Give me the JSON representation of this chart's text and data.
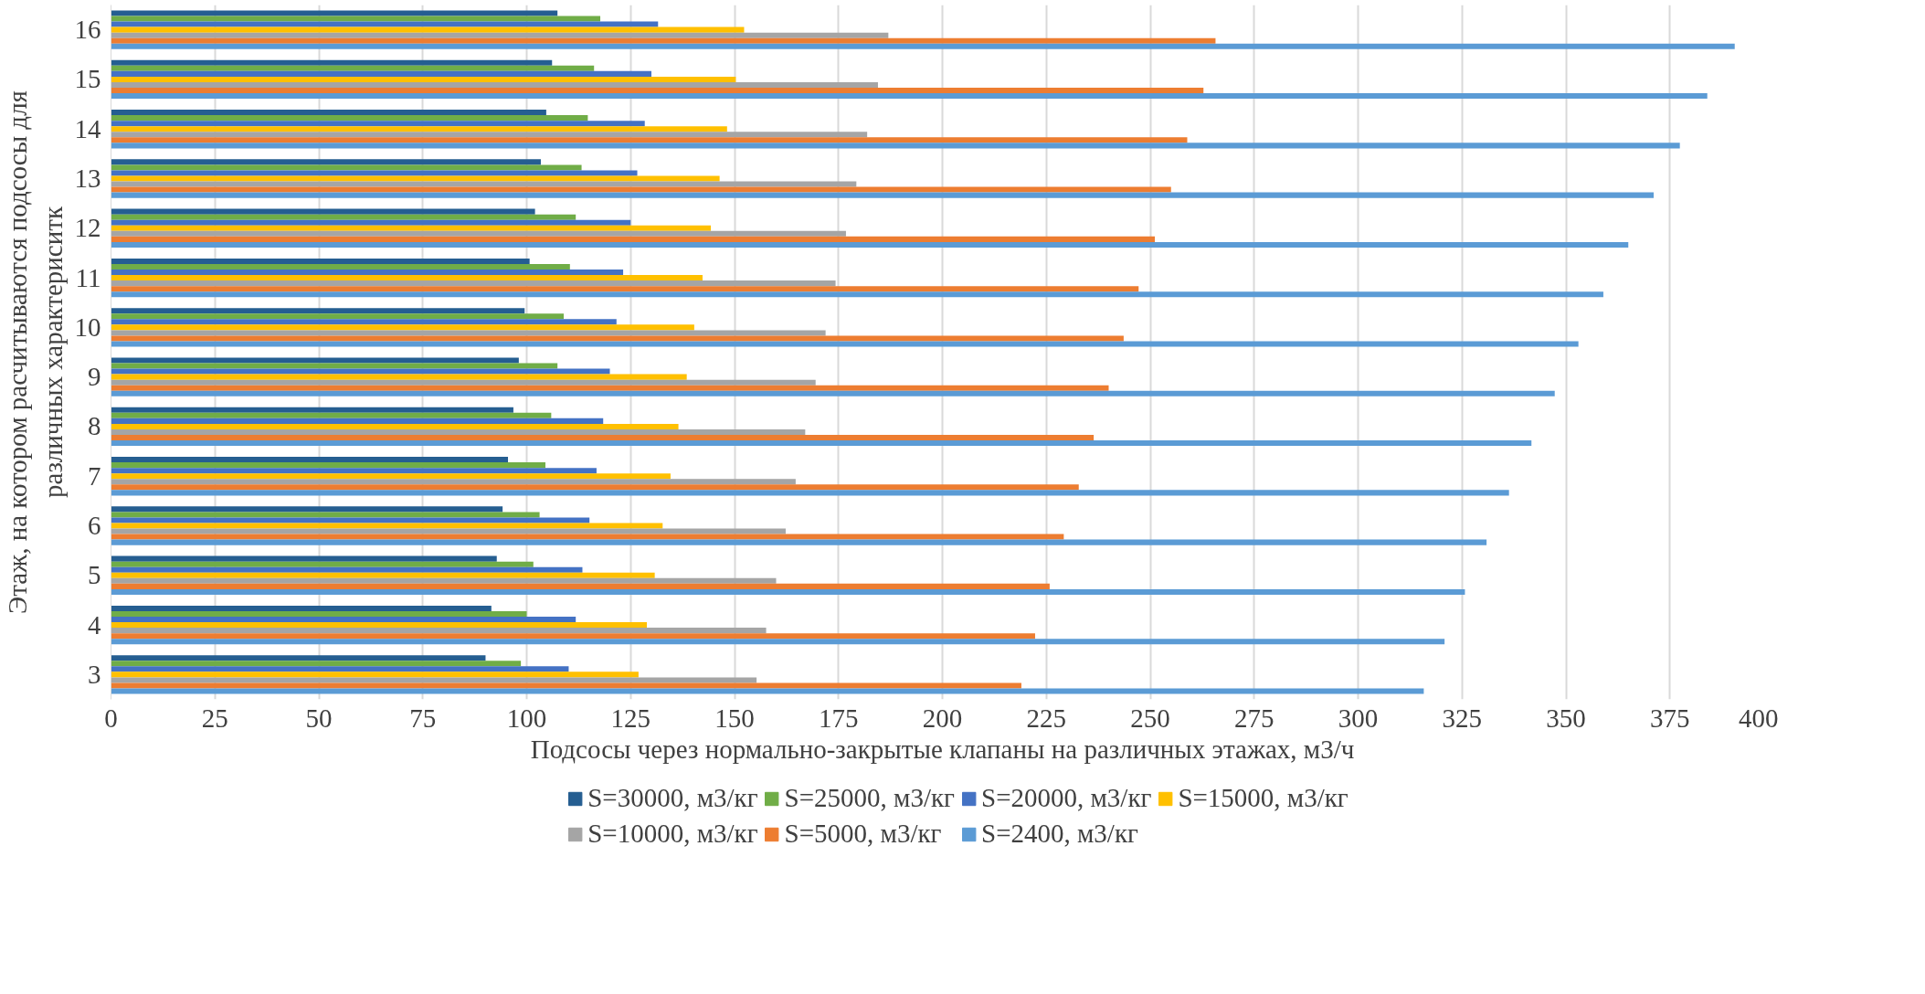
{
  "chart_data": {
    "type": "bar",
    "orientation": "horizontal",
    "xlabel": "Подсосы через нормально-закрытые клапаны на различных этажах, м3/ч",
    "ylabel": "Этаж, на котором расчитываются подсосы для\nразличных характериситк",
    "categories": [
      "16",
      "15",
      "14",
      "13",
      "12",
      "11",
      "10",
      "9",
      "8",
      "7",
      "6",
      "5",
      "4",
      "3"
    ],
    "series": [
      {
        "name": "S=30000, м3/кг",
        "color": "#255e91",
        "values": [
          107.4,
          106.1,
          104.7,
          103.4,
          102.0,
          100.7,
          99.5,
          98.1,
          96.8,
          95.5,
          94.2,
          92.8,
          91.5,
          90.1
        ]
      },
      {
        "name": "S=25000, м3/кг",
        "color": "#70ad47",
        "values": [
          117.7,
          116.2,
          114.7,
          113.2,
          111.8,
          110.4,
          108.9,
          107.4,
          105.9,
          104.5,
          103.1,
          101.6,
          100.0,
          98.6
        ]
      },
      {
        "name": "S=20000, м3/кг",
        "color": "#4472c4",
        "values": [
          131.6,
          130.0,
          128.4,
          126.6,
          125.0,
          123.2,
          121.6,
          120.0,
          118.4,
          116.8,
          115.1,
          113.4,
          111.8,
          110.1
        ]
      },
      {
        "name": "S=15000, м3/кг",
        "color": "#ffc000",
        "values": [
          152.3,
          150.3,
          148.2,
          146.4,
          144.3,
          142.3,
          140.3,
          138.5,
          136.5,
          134.6,
          132.7,
          130.8,
          128.9,
          126.9
        ]
      },
      {
        "name": "S=10000, м3/кг",
        "color": "#a5a5a5",
        "values": [
          187.0,
          184.5,
          181.9,
          179.3,
          176.8,
          174.3,
          171.9,
          169.5,
          167.0,
          164.7,
          162.3,
          160.0,
          157.6,
          155.3
        ]
      },
      {
        "name": "S=5000, м3/кг",
        "color": "#ed7d31",
        "values": [
          265.7,
          262.8,
          258.9,
          255.0,
          251.1,
          247.2,
          243.6,
          240.0,
          236.4,
          232.8,
          229.2,
          225.8,
          222.3,
          219.0
        ]
      },
      {
        "name": "S=2400, м3/кг",
        "color": "#5b9bd5",
        "values": [
          390.6,
          384.0,
          377.4,
          371.1,
          365.0,
          359.0,
          353.0,
          347.3,
          341.7,
          336.3,
          330.9,
          325.7,
          320.8,
          315.8
        ]
      }
    ],
    "xlim": [
      0,
      400
    ],
    "xticks": [
      0,
      25,
      50,
      75,
      100,
      125,
      150,
      175,
      200,
      225,
      250,
      275,
      300,
      325,
      350,
      375,
      400
    ],
    "grid": "x",
    "legend": "bottom"
  }
}
